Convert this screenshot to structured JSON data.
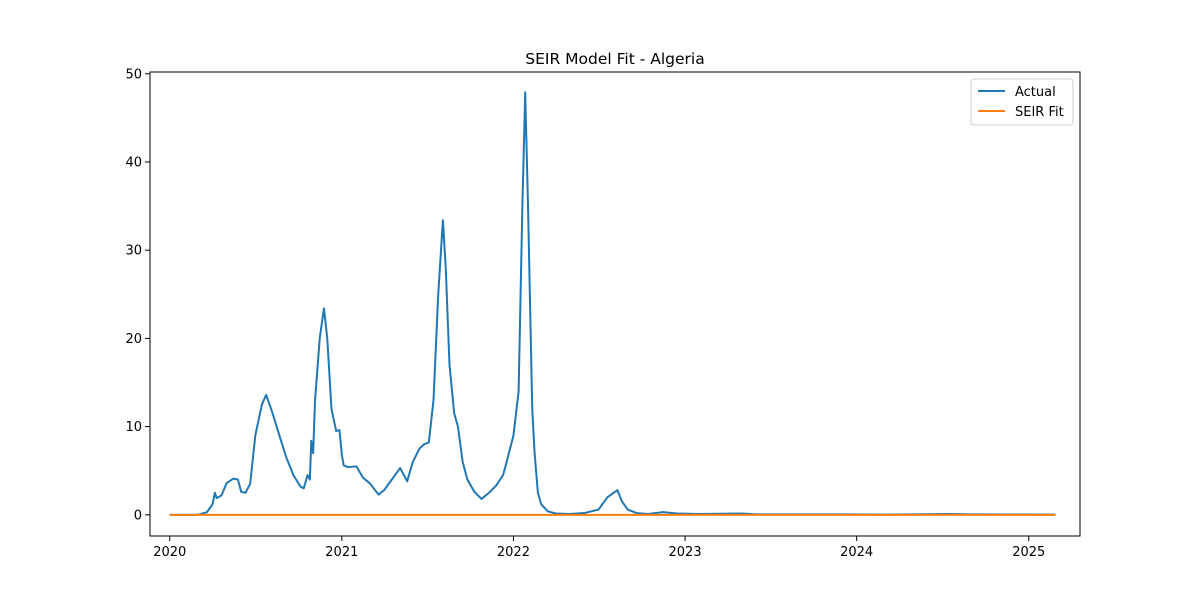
{
  "chart_data": {
    "type": "line",
    "title": "SEIR Model Fit - Algeria",
    "xlabel": "",
    "ylabel": "",
    "x_ticks": [
      "2020",
      "2021",
      "2022",
      "2023",
      "2024",
      "2025"
    ],
    "y_ticks": [
      "0",
      "10",
      "20",
      "30",
      "40",
      "50"
    ],
    "xlim": [
      "2019-11-20",
      "2025-04-20"
    ],
    "ylim": [
      -2.4,
      50.2
    ],
    "grid": false,
    "legend_position": "top-right",
    "series": [
      {
        "name": "Actual",
        "color": "#1f77b4",
        "points": [
          [
            "2020-01-01",
            0
          ],
          [
            "2020-03-01",
            0
          ],
          [
            "2020-03-20",
            0.3
          ],
          [
            "2020-04-01",
            1.2
          ],
          [
            "2020-04-06",
            2.5
          ],
          [
            "2020-04-10",
            1.9
          ],
          [
            "2020-04-20",
            2.2
          ],
          [
            "2020-05-01",
            3.6
          ],
          [
            "2020-05-15",
            4.1
          ],
          [
            "2020-05-25",
            4.0
          ],
          [
            "2020-06-01",
            2.6
          ],
          [
            "2020-06-10",
            2.5
          ],
          [
            "2020-06-20",
            3.5
          ],
          [
            "2020-07-01",
            9.0
          ],
          [
            "2020-07-15",
            12.5
          ],
          [
            "2020-07-24",
            13.6
          ],
          [
            "2020-08-05",
            11.8
          ],
          [
            "2020-08-20",
            9.2
          ],
          [
            "2020-09-05",
            6.5
          ],
          [
            "2020-09-20",
            4.5
          ],
          [
            "2020-10-05",
            3.2
          ],
          [
            "2020-10-12",
            3.0
          ],
          [
            "2020-10-20",
            4.5
          ],
          [
            "2020-10-25",
            4.0
          ],
          [
            "2020-10-28",
            8.4
          ],
          [
            "2020-11-01",
            7.0
          ],
          [
            "2020-11-05",
            13.0
          ],
          [
            "2020-11-15",
            20.0
          ],
          [
            "2020-11-24",
            23.4
          ],
          [
            "2020-12-01",
            20.0
          ],
          [
            "2020-12-10",
            12.0
          ],
          [
            "2020-12-20",
            9.5
          ],
          [
            "2020-12-27",
            9.6
          ],
          [
            "2021-01-01",
            6.8
          ],
          [
            "2021-01-05",
            5.6
          ],
          [
            "2021-01-15",
            5.4
          ],
          [
            "2021-02-01",
            5.5
          ],
          [
            "2021-02-15",
            4.2
          ],
          [
            "2021-03-01",
            3.6
          ],
          [
            "2021-03-20",
            2.3
          ],
          [
            "2021-04-01",
            2.8
          ],
          [
            "2021-04-20",
            4.2
          ],
          [
            "2021-05-05",
            5.3
          ],
          [
            "2021-05-20",
            3.8
          ],
          [
            "2021-06-01",
            6.0
          ],
          [
            "2021-06-15",
            7.5
          ],
          [
            "2021-06-25",
            8.0
          ],
          [
            "2021-07-05",
            8.2
          ],
          [
            "2021-07-15",
            13.0
          ],
          [
            "2021-07-25",
            25.0
          ],
          [
            "2021-08-04",
            33.4
          ],
          [
            "2021-08-10",
            28.0
          ],
          [
            "2021-08-18",
            17.0
          ],
          [
            "2021-08-28",
            11.5
          ],
          [
            "2021-09-05",
            10.0
          ],
          [
            "2021-09-15",
            6.0
          ],
          [
            "2021-09-25",
            4.0
          ],
          [
            "2021-10-10",
            2.6
          ],
          [
            "2021-10-25",
            1.8
          ],
          [
            "2021-11-10",
            2.5
          ],
          [
            "2021-11-25",
            3.3
          ],
          [
            "2021-12-10",
            4.5
          ],
          [
            "2021-12-20",
            6.5
          ],
          [
            "2022-01-01",
            9.0
          ],
          [
            "2022-01-12",
            14.0
          ],
          [
            "2022-01-20",
            35.0
          ],
          [
            "2022-01-26",
            47.9
          ],
          [
            "2022-02-01",
            35.0
          ],
          [
            "2022-02-10",
            12.0
          ],
          [
            "2022-02-15",
            7.0
          ],
          [
            "2022-02-22",
            2.5
          ],
          [
            "2022-03-01",
            1.2
          ],
          [
            "2022-03-15",
            0.4
          ],
          [
            "2022-04-01",
            0.15
          ],
          [
            "2022-05-01",
            0.1
          ],
          [
            "2022-06-01",
            0.2
          ],
          [
            "2022-07-01",
            0.6
          ],
          [
            "2022-07-20",
            2.0
          ],
          [
            "2022-08-10",
            2.8
          ],
          [
            "2022-08-20",
            1.5
          ],
          [
            "2022-09-01",
            0.6
          ],
          [
            "2022-09-20",
            0.2
          ],
          [
            "2022-10-15",
            0.1
          ],
          [
            "2022-11-15",
            0.3
          ],
          [
            "2022-12-15",
            0.15
          ],
          [
            "2023-02-01",
            0.1
          ],
          [
            "2023-05-01",
            0.15
          ],
          [
            "2023-06-01",
            0.05
          ],
          [
            "2023-09-01",
            0.05
          ],
          [
            "2023-12-01",
            0.05
          ],
          [
            "2024-03-01",
            0.02
          ],
          [
            "2024-07-15",
            0.1
          ],
          [
            "2024-09-01",
            0.05
          ],
          [
            "2025-01-01",
            0.03
          ],
          [
            "2025-02-27",
            0.02
          ]
        ]
      },
      {
        "name": "SEIR Fit",
        "color": "#ff7f0e",
        "points": [
          [
            "2020-01-01",
            0
          ],
          [
            "2025-02-27",
            0
          ]
        ]
      }
    ]
  }
}
